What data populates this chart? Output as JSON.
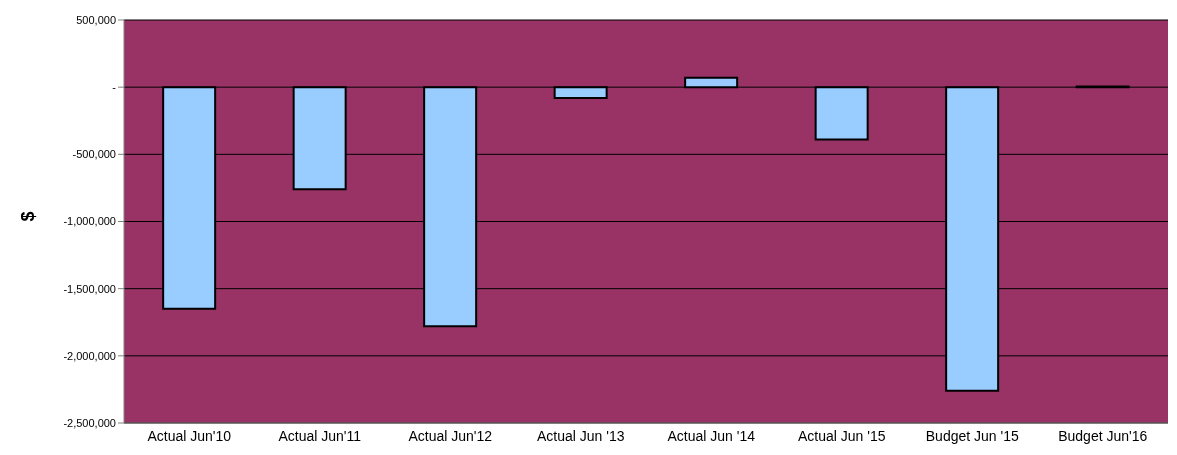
{
  "chart_data": {
    "type": "bar",
    "ylabel": "$",
    "categories": [
      "Actual Jun'10",
      "Actual Jun'11",
      "Actual Jun'12",
      "Actual Jun '13",
      "Actual Jun '14",
      "Actual Jun '15",
      "Budget Jun '15",
      "Budget Jun'16"
    ],
    "values": [
      -1650000,
      -760000,
      -1780000,
      -80000,
      70000,
      -390000,
      -2260000,
      5000
    ],
    "color": "#99ccff",
    "ylim": [
      -2500000,
      500000
    ],
    "yticks": [
      {
        "value": -2500000,
        "label": "-2,500,000"
      },
      {
        "value": -2000000,
        "label": "-2,000,000"
      },
      {
        "value": -1500000,
        "label": "-1,500,000"
      },
      {
        "value": -1000000,
        "label": "-1,000,000"
      },
      {
        "value": -500000,
        "label": "-500,000"
      },
      {
        "value": 0,
        "label": "-"
      },
      {
        "value": 500000,
        "label": "500,000"
      }
    ],
    "grid": "y"
  }
}
